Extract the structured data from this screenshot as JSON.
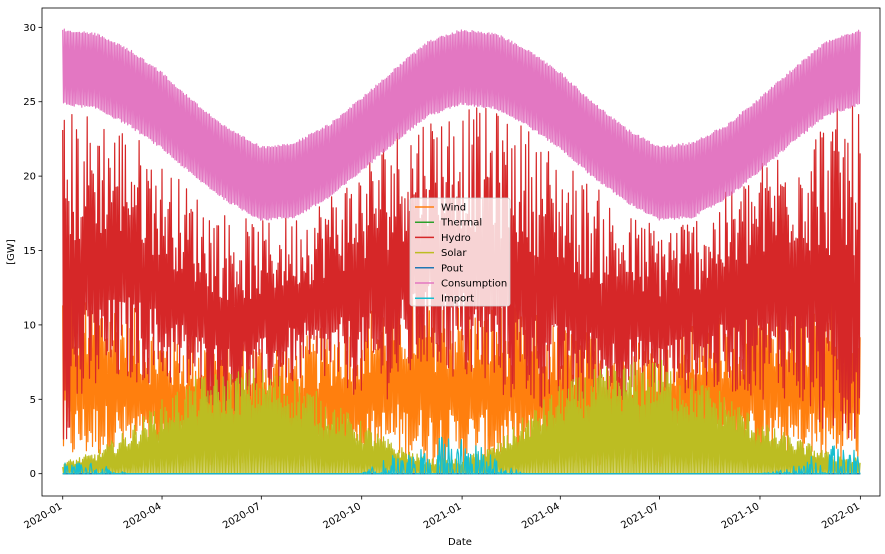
{
  "chart_data": {
    "type": "line",
    "xlabel": "Date",
    "ylabel": "[GW]",
    "x_range": [
      "2019-12-13",
      "2022-01-19"
    ],
    "ylim": [
      -1.5,
      31.3
    ],
    "y_ticks": [
      0,
      5,
      10,
      15,
      20,
      25,
      30
    ],
    "x_ticks": [
      "2020-01",
      "2020-04",
      "2020-07",
      "2020-10",
      "2021-01",
      "2021-04",
      "2021-07",
      "2021-10",
      "2022-01"
    ],
    "grid": false,
    "legend_position": "center",
    "series": [
      {
        "name": "Wind",
        "color": "#ff7f0e",
        "x": [
          "2020-01",
          "2020-02",
          "2020-03",
          "2020-04",
          "2020-05",
          "2020-06",
          "2020-07",
          "2020-08",
          "2020-09",
          "2020-10",
          "2020-11",
          "2020-12",
          "2021-01",
          "2021-02",
          "2021-03",
          "2021-04",
          "2021-05",
          "2021-06",
          "2021-07",
          "2021-08",
          "2021-09",
          "2021-10",
          "2021-11",
          "2021-12",
          "2022-01"
        ],
        "low": [
          0.5,
          1.0,
          1.0,
          0.5,
          0.5,
          0.5,
          0.5,
          0.5,
          0.5,
          0.5,
          1.0,
          0.5,
          0.5,
          0.5,
          0.5,
          0.5,
          0.5,
          0.5,
          0.5,
          0.5,
          0.5,
          0.5,
          0.5,
          0.5,
          0.5
        ],
        "high": [
          13.3,
          12.0,
          11.5,
          9.5,
          9.5,
          9.0,
          9.0,
          9.0,
          10.0,
          11.0,
          12.0,
          12.0,
          11.5,
          11.5,
          11.0,
          10.0,
          9.5,
          9.0,
          9.5,
          10.0,
          11.0,
          12.0,
          12.5,
          12.5,
          12.5
        ]
      },
      {
        "name": "Thermal",
        "color": "#2ca02c",
        "constant": 0
      },
      {
        "name": "Hydro",
        "color": "#d62728",
        "x": [
          "2020-01",
          "2020-02",
          "2020-03",
          "2020-04",
          "2020-05",
          "2020-06",
          "2020-07",
          "2020-08",
          "2020-09",
          "2020-10",
          "2020-11",
          "2020-12",
          "2021-01",
          "2021-02",
          "2021-03",
          "2021-04",
          "2021-05",
          "2021-06",
          "2021-07",
          "2021-08",
          "2021-09",
          "2021-10",
          "2021-11",
          "2021-12",
          "2022-01"
        ],
        "low": [
          2.0,
          5.0,
          6.0,
          6.0,
          5.0,
          4.0,
          5.0,
          6.0,
          6.0,
          5.0,
          5.0,
          7.0,
          6.0,
          5.0,
          4.5,
          4.0,
          4.5,
          5.0,
          5.0,
          5.5,
          5.5,
          5.0,
          5.0,
          2.0,
          2.0
        ],
        "high": [
          24.5,
          24.5,
          23.5,
          21.0,
          19.0,
          17.5,
          17.0,
          17.5,
          19.0,
          21.0,
          23.5,
          24.5,
          24.8,
          24.5,
          23.5,
          21.5,
          19.5,
          17.5,
          17.0,
          17.5,
          19.0,
          21.0,
          23.0,
          24.5,
          24.8
        ]
      },
      {
        "name": "Solar",
        "color": "#bcbd22",
        "x": [
          "2020-01",
          "2020-02",
          "2020-03",
          "2020-04",
          "2020-05",
          "2020-06",
          "2020-07",
          "2020-08",
          "2020-09",
          "2020-10",
          "2020-11",
          "2020-12",
          "2021-01",
          "2021-02",
          "2021-03",
          "2021-04",
          "2021-05",
          "2021-06",
          "2021-07",
          "2021-08",
          "2021-09",
          "2021-10",
          "2021-11",
          "2021-12",
          "2022-01"
        ],
        "low": [
          0,
          0,
          0,
          0,
          0,
          0,
          0,
          0,
          0,
          0,
          0,
          0,
          0,
          0,
          0,
          0,
          0,
          0,
          0,
          0,
          0,
          0,
          0,
          0,
          0
        ],
        "high": [
          0.8,
          1.5,
          3.0,
          5.0,
          6.5,
          7.0,
          7.2,
          6.5,
          5.0,
          3.5,
          2.0,
          1.0,
          1.0,
          2.0,
          4.0,
          6.0,
          7.0,
          7.5,
          7.8,
          6.5,
          5.5,
          3.5,
          2.5,
          1.5,
          1.0
        ]
      },
      {
        "name": "Pout",
        "color": "#1f77b4",
        "constant": 0
      },
      {
        "name": "Consumption",
        "color": "#e377c2",
        "x": [
          "2020-01",
          "2020-02",
          "2020-03",
          "2020-04",
          "2020-05",
          "2020-06",
          "2020-07",
          "2020-08",
          "2020-09",
          "2020-10",
          "2020-11",
          "2020-12",
          "2021-01",
          "2021-02",
          "2021-03",
          "2021-04",
          "2021-05",
          "2021-06",
          "2021-07",
          "2021-08",
          "2021-09",
          "2021-10",
          "2021-11",
          "2021-12",
          "2022-01"
        ],
        "low": [
          24.8,
          24.5,
          23.4,
          21.8,
          19.9,
          18.2,
          17.0,
          17.2,
          18.5,
          20.3,
          22.3,
          24.0,
          24.8,
          24.5,
          23.4,
          21.8,
          19.9,
          18.2,
          17.0,
          17.2,
          18.5,
          20.3,
          22.3,
          24.0,
          24.8
        ],
        "high": [
          29.9,
          29.6,
          28.6,
          27.0,
          25.0,
          23.2,
          22.0,
          22.3,
          23.5,
          25.3,
          27.3,
          29.1,
          29.9,
          29.6,
          28.6,
          27.0,
          25.0,
          23.2,
          22.0,
          22.3,
          23.5,
          25.3,
          27.3,
          29.1,
          29.9
        ]
      },
      {
        "name": "Import",
        "color": "#17becf",
        "x": [
          "2020-01",
          "2020-02",
          "2020-03",
          "2020-04",
          "2020-05",
          "2020-06",
          "2020-07",
          "2020-08",
          "2020-09",
          "2020-10",
          "2020-11",
          "2020-12",
          "2021-01",
          "2021-02",
          "2021-03",
          "2021-04",
          "2021-05",
          "2021-06",
          "2021-07",
          "2021-08",
          "2021-09",
          "2021-10",
          "2021-11",
          "2021-12",
          "2022-01"
        ],
        "low": [
          0,
          0,
          0,
          0,
          0,
          0,
          0,
          0,
          0,
          0,
          0,
          0,
          0,
          0,
          0,
          0,
          0,
          0,
          0,
          0,
          0,
          0,
          0,
          0,
          0
        ],
        "high": [
          0.8,
          0.7,
          0,
          0,
          0,
          0,
          0,
          0,
          0,
          0,
          1.5,
          2.5,
          2.8,
          1.0,
          0,
          0,
          0,
          0,
          0,
          0,
          0,
          0,
          0.5,
          1.8,
          2.2
        ]
      }
    ]
  }
}
